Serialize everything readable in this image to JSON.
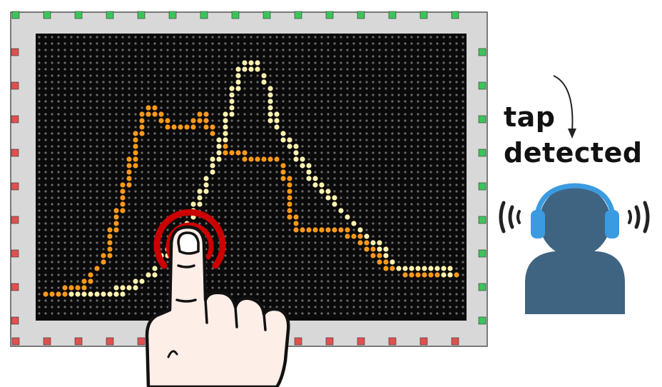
{
  "caption": {
    "line1": "tap",
    "line2": "detected"
  },
  "colors": {
    "frame": "#d8d8d8",
    "frame_border": "#555555",
    "screen": "#0a0a0a",
    "dot_off": "#6a6a6a",
    "trace_orange": "#ff9a1a",
    "trace_cream": "#fff3b0",
    "led_green": "#3cc45a",
    "led_red": "#e05050",
    "ripple": "#cc0000",
    "person": "#3f6482",
    "headphones": "#3b9be0",
    "hand_fill": "#fdeee8",
    "hand_outline": "#111111"
  },
  "icons": {
    "hand": "pointing-hand-icon",
    "listener": "headphones-person-icon",
    "sound": "sound-wave-icon",
    "arrow": "curved-arrow-icon"
  }
}
